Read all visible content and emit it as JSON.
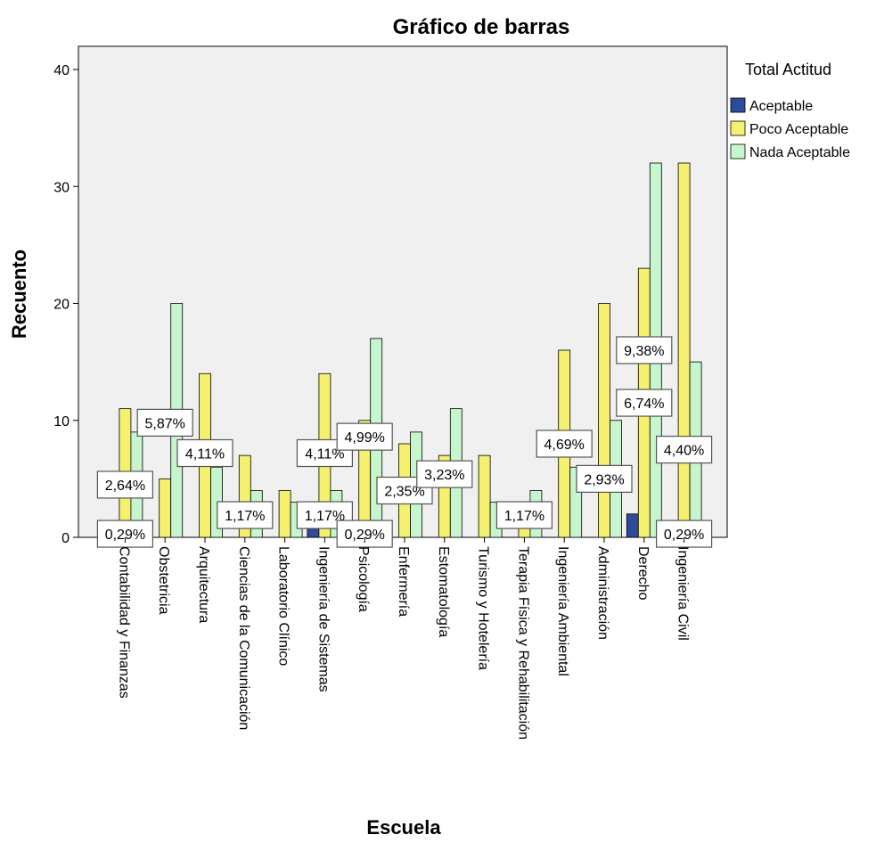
{
  "chart_data": {
    "type": "bar",
    "title": "Gráfico de barras",
    "xlabel": "Escuela",
    "ylabel": "Recuento",
    "ylim": [
      0,
      40
    ],
    "yticks": [
      0,
      10,
      20,
      30,
      40
    ],
    "legend_title": "Total Actitud",
    "legend_position": "right",
    "categories": [
      "Contabilidad y Finanzas",
      "Obstetricia",
      "Arquitectura",
      "Ciencias de la Comunicación",
      "Laboratorio Clínico",
      "Ingeniería de Sistemas",
      "Psicología",
      "Enfermería",
      "Estomatología",
      "Turismo y Hotelería",
      "Terapia Física y Rehabilitación",
      "Ingeniería Ambiental",
      "Administración",
      "Derecho",
      "Ingeniería Civil"
    ],
    "series": [
      {
        "name": "Aceptable",
        "color": "#2e4b9b",
        "values": [
          0,
          0,
          0,
          0,
          0,
          1,
          0,
          0,
          0,
          0,
          0,
          0,
          0,
          2,
          0
        ]
      },
      {
        "name": "Poco Aceptable",
        "color": "#f5f06e",
        "values": [
          11,
          5,
          14,
          7,
          4,
          14,
          10,
          8,
          7,
          7,
          1,
          16,
          20,
          23,
          32
        ]
      },
      {
        "name": "Nada Aceptable",
        "color": "#c6f5cf",
        "values": [
          9,
          20,
          6,
          4,
          3,
          4,
          17,
          9,
          11,
          3,
          4,
          6,
          10,
          32,
          15
        ]
      }
    ],
    "data_labels": [
      {
        "text": "0,29%",
        "category": 0,
        "y": 0.3
      },
      {
        "text": "2,64%",
        "category": 0,
        "y": 4.5
      },
      {
        "text": "5,87%",
        "category": 1,
        "y": 9.8
      },
      {
        "text": "4,11%",
        "category": 2,
        "y": 7.2
      },
      {
        "text": "1,17%",
        "category": 3,
        "y": 1.9
      },
      {
        "text": "1,17%",
        "category": 5,
        "y": 1.9
      },
      {
        "text": "4,11%",
        "category": 5,
        "y": 7.2
      },
      {
        "text": "4,99%",
        "category": 6,
        "y": 8.6
      },
      {
        "text": "0,29%",
        "category": 6,
        "y": 0.3
      },
      {
        "text": "2,35%",
        "category": 7,
        "y": 4.0
      },
      {
        "text": "3,23%",
        "category": 8,
        "y": 5.4
      },
      {
        "text": "1,17%",
        "category": 10,
        "y": 1.9
      },
      {
        "text": "4,69%",
        "category": 11,
        "y": 8.0
      },
      {
        "text": "2,93%",
        "category": 12,
        "y": 5.0
      },
      {
        "text": "6,74%",
        "category": 13,
        "y": 11.5
      },
      {
        "text": "9,38%",
        "category": 13,
        "y": 16.0
      },
      {
        "text": "4,40%",
        "category": 14,
        "y": 7.5
      },
      {
        "text": "0,29%",
        "category": 14,
        "y": 0.3
      }
    ]
  }
}
